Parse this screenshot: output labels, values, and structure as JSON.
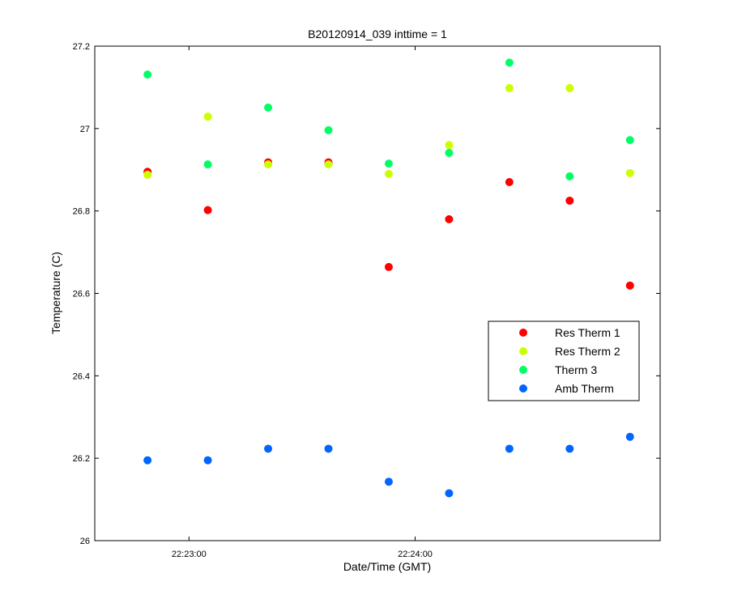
{
  "chart_data": {
    "type": "scatter",
    "title": "B20120914_039 inttime = 1",
    "xlabel": "Date/Time (GMT)",
    "ylabel": "Temperature (C)",
    "x": [
      "22:22:49",
      "22:23:05",
      "22:23:21",
      "22:23:37",
      "22:23:53",
      "22:24:09",
      "22:24:25",
      "22:24:41",
      "22:24:57"
    ],
    "xlim": [
      "22:22:35",
      "22:25:05"
    ],
    "xticks": [
      "22:23:00",
      "22:24:00"
    ],
    "ylim": [
      26,
      27.2
    ],
    "yticks": [
      "26",
      "26.2",
      "26.4",
      "26.6",
      "26.8",
      "27",
      "27.2"
    ],
    "grid": false,
    "legend_position": "right",
    "series": [
      {
        "name": "Res Therm 1",
        "color": "#ff0000",
        "values": [
          26.895,
          26.802,
          26.918,
          26.918,
          26.664,
          26.78,
          26.87,
          26.825,
          26.619
        ]
      },
      {
        "name": "Res Therm 2",
        "color": "#ccff00",
        "values": [
          26.888,
          27.029,
          26.913,
          26.913,
          26.89,
          26.96,
          27.098,
          27.098,
          26.892
        ]
      },
      {
        "name": "Therm 3",
        "color": "#00ff66",
        "values": [
          27.131,
          26.913,
          27.051,
          26.996,
          26.915,
          26.941,
          27.16,
          26.884,
          26.972
        ]
      },
      {
        "name": "Amb Therm",
        "color": "#0066ff",
        "values": [
          26.195,
          26.195,
          26.223,
          26.223,
          26.143,
          26.115,
          26.223,
          26.223,
          26.252
        ]
      }
    ]
  }
}
